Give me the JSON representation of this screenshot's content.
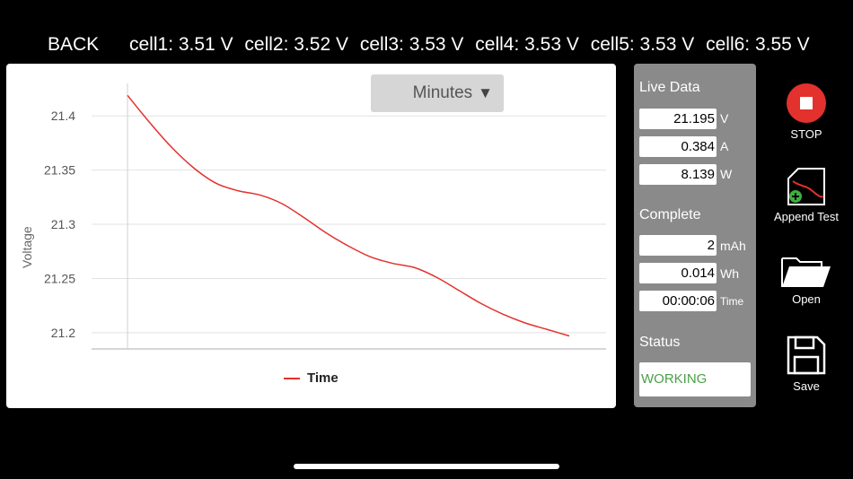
{
  "header": {
    "back_label": "BACK",
    "cells": [
      "cell1: 3.51 V",
      "cell2: 3.52 V",
      "cell3: 3.53 V",
      "cell4: 3.53 V",
      "cell5: 3.53 V",
      "cell6: 3.55 V"
    ]
  },
  "chart": {
    "dropdown_label": "Minutes",
    "dropdown_caret": "▼",
    "ylabel": "Voltage",
    "legend_label": "Time",
    "line_color": "#e3312d"
  },
  "chart_data": {
    "type": "line",
    "title": "",
    "xlabel": "",
    "ylabel": "Voltage",
    "ylim": [
      21.185,
      21.43
    ],
    "xlim": [
      0,
      1
    ],
    "yticks": [
      21.4,
      21.35,
      21.3,
      21.25,
      21.2
    ],
    "ytick_labels": [
      "21.4",
      "21.35",
      "21.3",
      "21.25",
      "21.2"
    ],
    "grid": true,
    "legend": "bottom-center",
    "series": [
      {
        "name": "Time",
        "x": [
          0,
          0.05,
          0.1,
          0.15,
          0.2,
          0.25,
          0.3,
          0.35,
          0.4,
          0.45,
          0.5,
          0.55,
          0.6,
          0.65,
          0.7,
          0.75,
          0.8,
          0.85,
          0.9,
          0.95,
          1.0
        ],
        "y": [
          21.419,
          21.394,
          21.371,
          21.352,
          21.338,
          21.331,
          21.327,
          21.319,
          21.306,
          21.292,
          21.28,
          21.27,
          21.264,
          21.26,
          21.251,
          21.239,
          21.227,
          21.217,
          21.209,
          21.203,
          21.197
        ]
      }
    ]
  },
  "live_data": {
    "title": "Live Data",
    "fields": [
      {
        "value": "21.195",
        "unit": "V"
      },
      {
        "value": "0.384",
        "unit": "A"
      },
      {
        "value": "8.139",
        "unit": "W"
      }
    ]
  },
  "complete": {
    "title": "Complete",
    "fields": [
      {
        "value": "2",
        "unit": "mAh"
      },
      {
        "value": "0.014",
        "unit": "Wh"
      },
      {
        "value": "00:00:06",
        "unit": "Time"
      }
    ]
  },
  "status": {
    "title": "Status",
    "value": "WORKING",
    "color": "#4aa04a"
  },
  "toolbar": {
    "stop_label": "STOP",
    "append_label": "Append Test",
    "open_label": "Open",
    "save_label": "Save",
    "stop_color": "#e3312d"
  }
}
